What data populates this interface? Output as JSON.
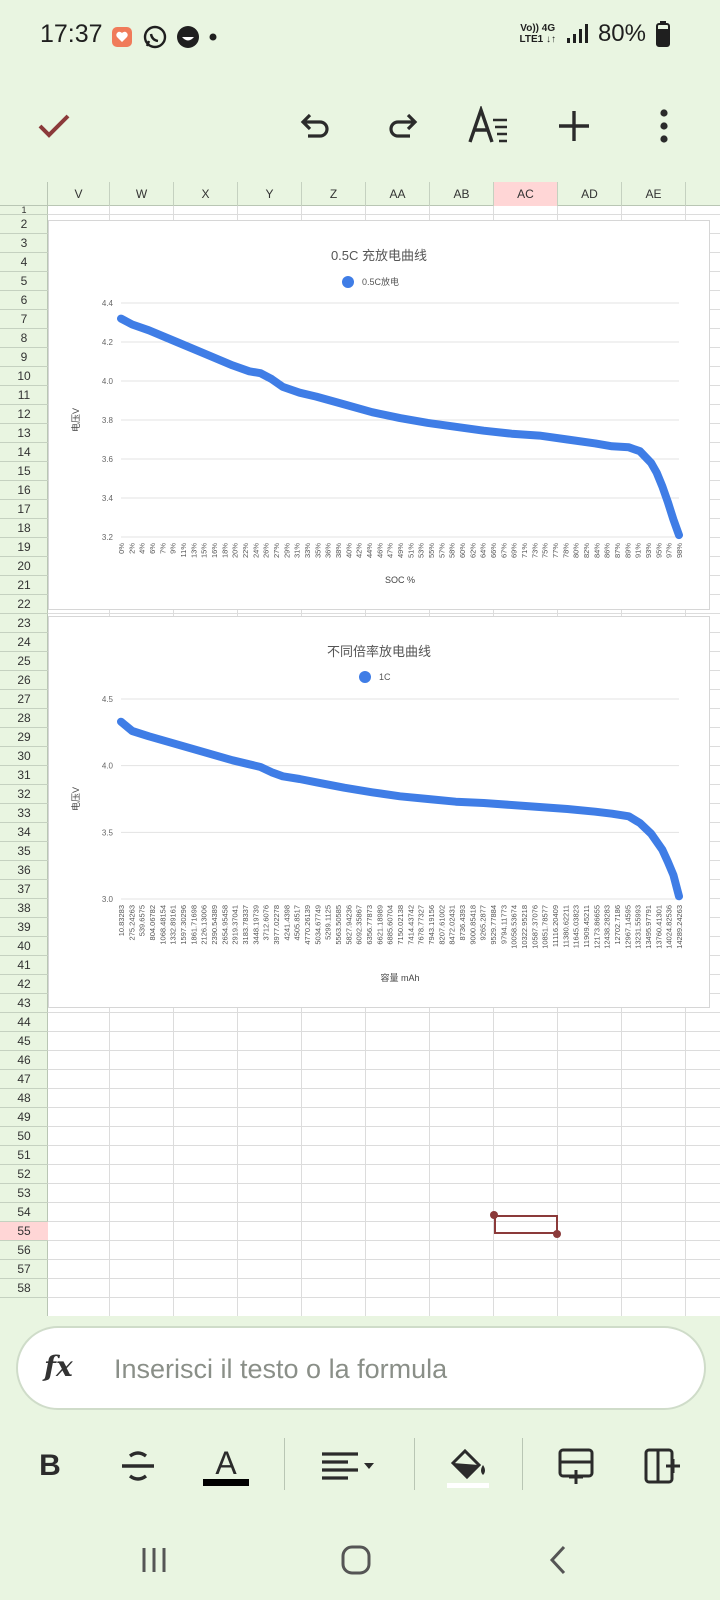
{
  "status_bar": {
    "time": "17:37",
    "net_top": "Vo)) 4G",
    "net_bottom": "LTE1 ↓↑",
    "battery": "80%"
  },
  "toolbar": {
    "confirm_icon": "check-icon",
    "undo_icon": "undo-icon",
    "redo_icon": "redo-icon",
    "format_icon": "text-format-icon",
    "add_icon": "plus-icon",
    "more_icon": "more-vert-icon"
  },
  "columns": [
    "V",
    "W",
    "X",
    "Y",
    "Z",
    "AA",
    "AB",
    "AC",
    "AD",
    "AE"
  ],
  "selected_column": "AC",
  "rows": [
    "1",
    "2",
    "3",
    "4",
    "5",
    "6",
    "7",
    "8",
    "9",
    "10",
    "11",
    "12",
    "13",
    "14",
    "15",
    "16",
    "17",
    "18",
    "19",
    "20",
    "21",
    "22",
    "23",
    "24",
    "25",
    "26",
    "27",
    "28",
    "29",
    "30",
    "31",
    "32",
    "33",
    "34",
    "35",
    "36",
    "37",
    "38",
    "39",
    "40",
    "41",
    "42",
    "43",
    "44",
    "45",
    "46",
    "47",
    "48",
    "49",
    "50",
    "51",
    "52",
    "53",
    "54",
    "55",
    "56",
    "57",
    "58"
  ],
  "selected_row": "55",
  "chart_data": [
    {
      "type": "line",
      "title": "0.5C 充放电曲线",
      "xlabel": "SOC %",
      "ylabel": "电压V",
      "ylim": [
        3.2,
        4.4
      ],
      "yticks": [
        "4.4",
        "4.2",
        "4.0",
        "3.8",
        "3.6",
        "3.4",
        "3.2"
      ],
      "grid": true,
      "legend": "top-center",
      "color": "#3f7de6",
      "categories": [
        "0%",
        "2%",
        "4%",
        "6%",
        "7%",
        "9%",
        "11%",
        "13%",
        "15%",
        "16%",
        "18%",
        "20%",
        "22%",
        "24%",
        "26%",
        "27%",
        "29%",
        "31%",
        "33%",
        "35%",
        "36%",
        "38%",
        "40%",
        "42%",
        "44%",
        "46%",
        "47%",
        "49%",
        "51%",
        "53%",
        "55%",
        "57%",
        "58%",
        "60%",
        "62%",
        "64%",
        "66%",
        "67%",
        "69%",
        "71%",
        "73%",
        "75%",
        "77%",
        "78%",
        "80%",
        "82%",
        "84%",
        "86%",
        "87%",
        "89%",
        "91%",
        "93%",
        "95%",
        "97%",
        "98%"
      ],
      "series": [
        {
          "name": "0.5C放电",
          "x": [
            0,
            2,
            5,
            10,
            15,
            20,
            23,
            25,
            27,
            29,
            32,
            35,
            40,
            45,
            50,
            55,
            60,
            65,
            70,
            75,
            80,
            85,
            88,
            91,
            93,
            95,
            96,
            97,
            98,
            99,
            100
          ],
          "values": [
            4.32,
            4.29,
            4.26,
            4.2,
            4.14,
            4.08,
            4.05,
            4.04,
            4.01,
            3.97,
            3.94,
            3.92,
            3.88,
            3.84,
            3.81,
            3.785,
            3.765,
            3.745,
            3.73,
            3.72,
            3.7,
            3.68,
            3.665,
            3.66,
            3.64,
            3.58,
            3.53,
            3.46,
            3.38,
            3.29,
            3.21
          ]
        }
      ]
    },
    {
      "type": "line",
      "title": "不同倍率放电曲线",
      "xlabel": "容量 mAh",
      "ylabel": "电压V",
      "ylim": [
        3.0,
        4.5
      ],
      "yticks": [
        "4.5",
        "4.0",
        "3.5",
        "3.0"
      ],
      "grid": true,
      "legend": "top-center",
      "color": "#3f7de6",
      "categories": [
        "10.83283",
        "275.24263",
        "539.6575",
        "804.06782",
        "1068.48154",
        "1332.89161",
        "1597.30296",
        "1861.71698",
        "2126.13006",
        "2390.54389",
        "2654.95458",
        "2919.37041",
        "3183.78337",
        "3448.19739",
        "3712.6076",
        "3977.02278",
        "4241.4398",
        "4505.8517",
        "4770.26139",
        "5034.67749",
        "5299.1125",
        "5563.50585",
        "5827.94236",
        "6092.35867",
        "6356.77873",
        "6621.18989",
        "6885.60704",
        "7150.02138",
        "7414.43742",
        "7678.77327",
        "7943.19156",
        "8207.61002",
        "8472.02431",
        "8736.4393",
        "9000.85418",
        "9265.2877",
        "9529.77884",
        "9794.11773",
        "10058.53674",
        "10322.95218",
        "10587.37076",
        "10851.78577",
        "11116.20409",
        "11380.62211",
        "11645.03823",
        "11909.45211",
        "12173.86655",
        "12438.28283",
        "12702.7186",
        "12967.14595",
        "13231.55993",
        "13495.97791",
        "13760.41301",
        "14024.82536",
        "14289.24263"
      ],
      "series": [
        {
          "name": "1C",
          "x": [
            0,
            2,
            5,
            10,
            15,
            20,
            23,
            25,
            27,
            29,
            32,
            35,
            40,
            45,
            50,
            55,
            60,
            65,
            70,
            75,
            80,
            85,
            88,
            91,
            93,
            95,
            96,
            97,
            98,
            99,
            100
          ],
          "values": [
            4.33,
            4.26,
            4.22,
            4.16,
            4.1,
            4.04,
            4.01,
            3.99,
            3.95,
            3.92,
            3.9,
            3.875,
            3.835,
            3.8,
            3.77,
            3.75,
            3.73,
            3.72,
            3.705,
            3.69,
            3.675,
            3.655,
            3.64,
            3.62,
            3.57,
            3.49,
            3.43,
            3.37,
            3.28,
            3.18,
            3.02
          ]
        }
      ]
    }
  ],
  "formula_bar": {
    "fx_label": "fx",
    "placeholder": "Inserisci il testo o la formula"
  },
  "format_bar": {
    "bold_label": "B",
    "font_color_label": "A"
  }
}
